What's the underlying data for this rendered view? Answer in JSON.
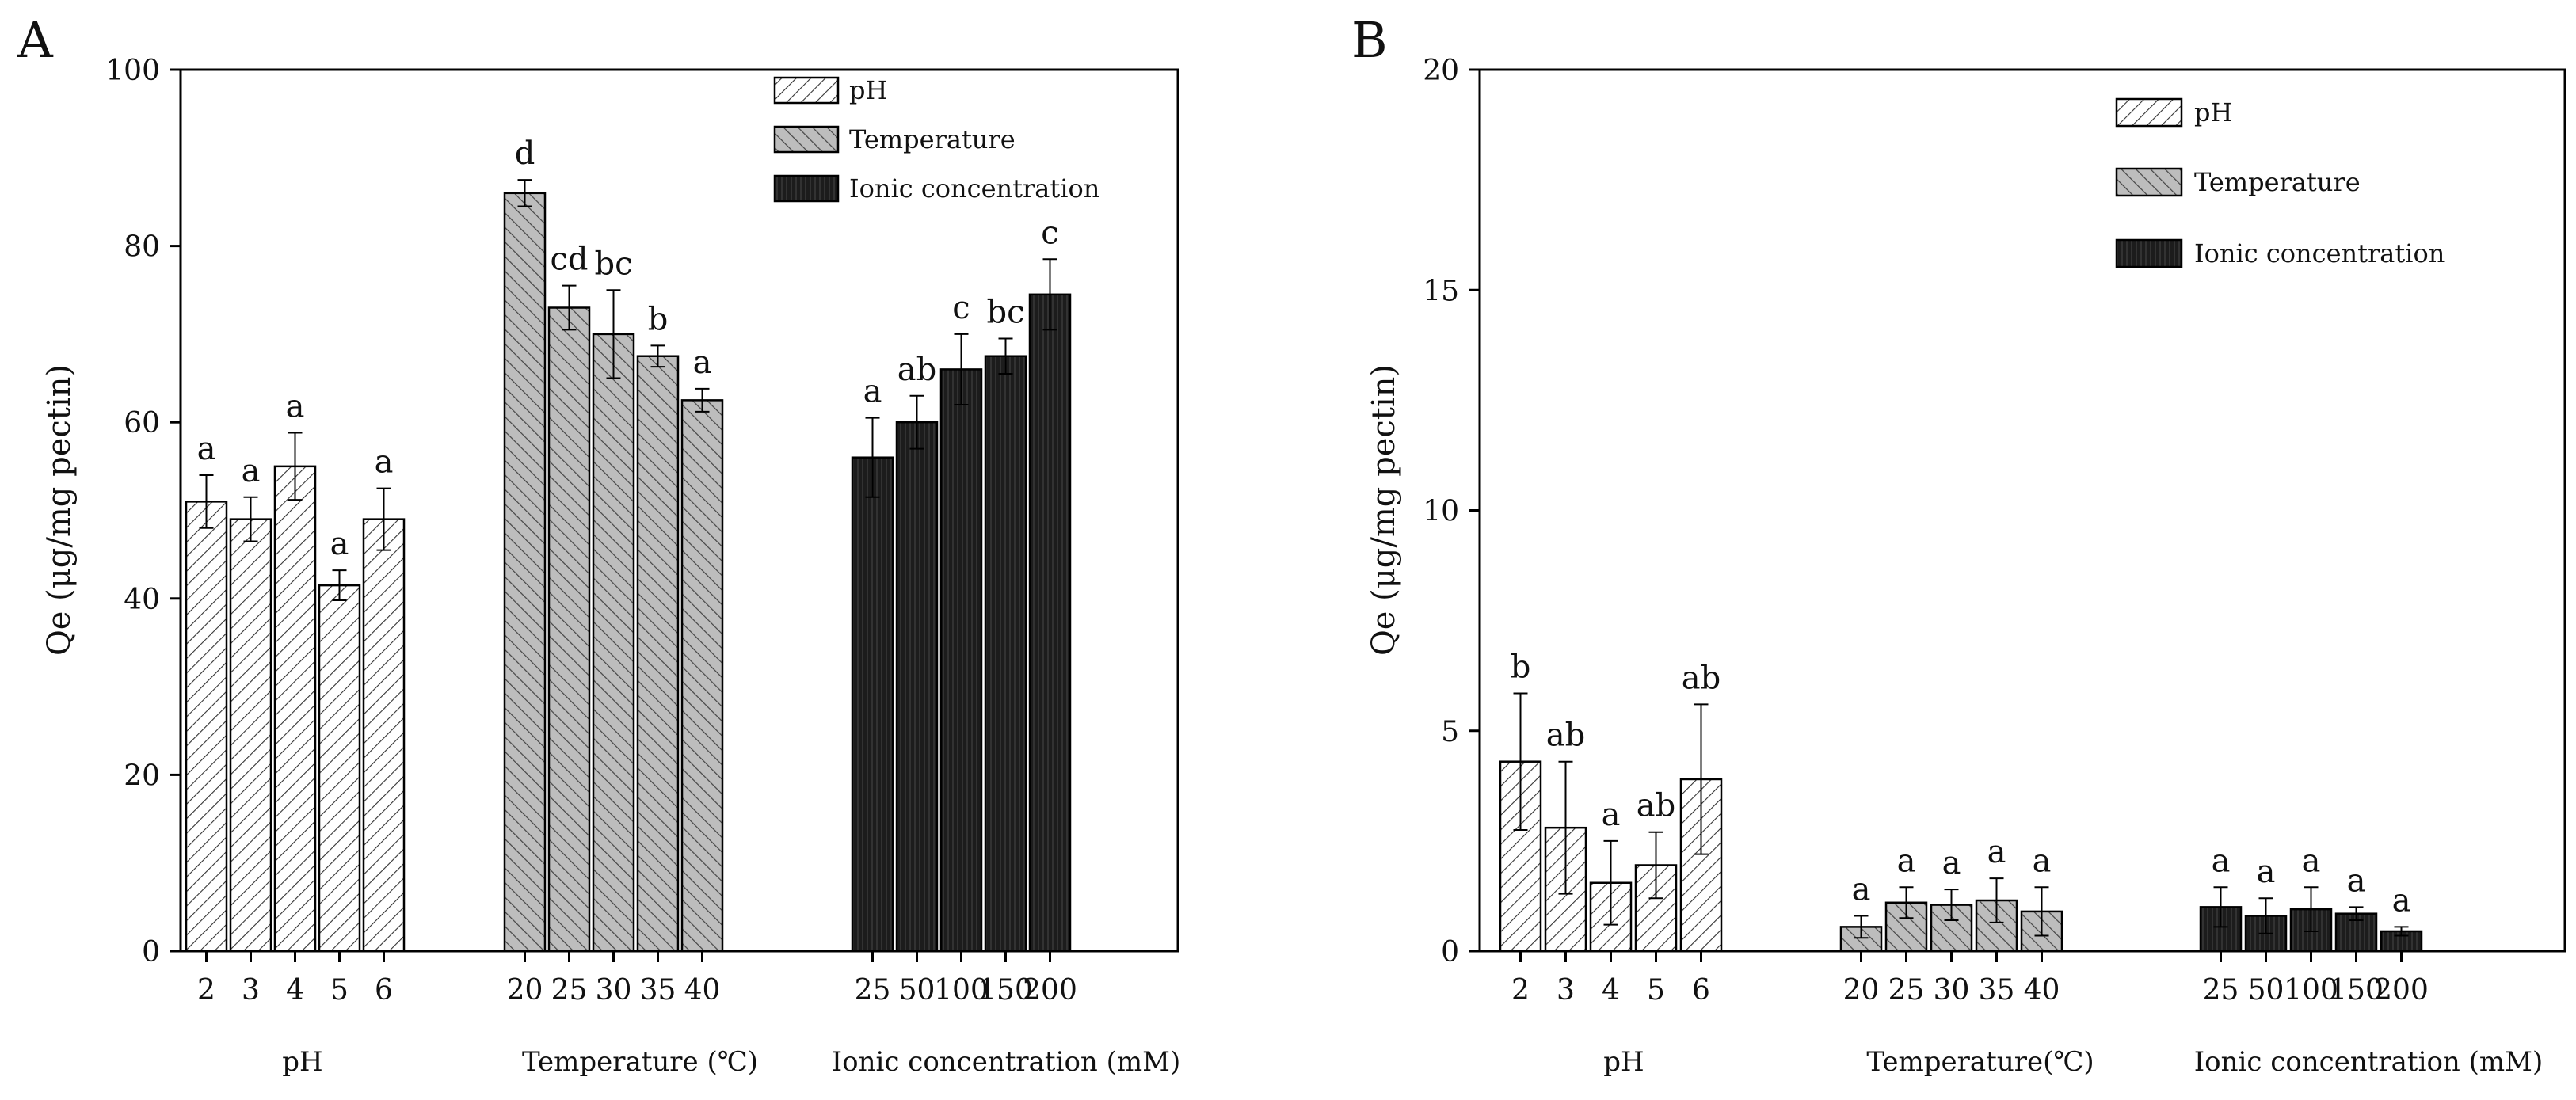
{
  "chart_data": [
    {
      "type": "bar",
      "panel": "A",
      "ylabel": "Qe (μg/mg pectin)",
      "ylim": [
        0,
        100
      ],
      "yticks": [
        0,
        20,
        40,
        60,
        80,
        100
      ],
      "legend": {
        "placement": "top-center",
        "entries": [
          "pH",
          "Temperature",
          "Ionic concentration"
        ]
      },
      "groups": [
        {
          "name": "pH",
          "label": "pH",
          "categories": [
            "2",
            "3",
            "4",
            "5",
            "6"
          ],
          "values": [
            51.0,
            49.0,
            55.0,
            41.5,
            49.0
          ],
          "errors": [
            3.0,
            2.5,
            3.8,
            1.7,
            3.5
          ],
          "letters": [
            "a",
            "a",
            "a",
            "a",
            "a"
          ]
        },
        {
          "name": "Temperature",
          "label": "Temperature (℃)",
          "categories": [
            "20",
            "25",
            "30",
            "35",
            "40"
          ],
          "values": [
            86.0,
            73.0,
            70.0,
            67.5,
            62.5
          ],
          "errors": [
            1.5,
            2.5,
            5.0,
            1.2,
            1.3
          ],
          "letters": [
            "d",
            "cd",
            "bc",
            "b",
            "a"
          ]
        },
        {
          "name": "Ionic concentration",
          "label": "Ionic concentration (mM)",
          "categories": [
            "25",
            "50",
            "100",
            "150",
            "200"
          ],
          "values": [
            56.0,
            60.0,
            66.0,
            67.5,
            74.5
          ],
          "errors": [
            4.5,
            3.0,
            4.0,
            2.0,
            4.0
          ],
          "letters": [
            "a",
            "ab",
            "c",
            "bc",
            "c"
          ]
        }
      ]
    },
    {
      "type": "bar",
      "panel": "B",
      "ylabel": "Qe (μg/mg pectin)",
      "ylim": [
        0,
        20
      ],
      "yticks": [
        0,
        5,
        10,
        15,
        20
      ],
      "legend": {
        "placement": "top-right",
        "entries": [
          "pH",
          "Temperature",
          "Ionic concentration"
        ]
      },
      "groups": [
        {
          "name": "pH",
          "label": "pH",
          "categories": [
            "2",
            "3",
            "4",
            "5",
            "6"
          ],
          "values": [
            4.3,
            2.8,
            1.55,
            1.95,
            3.9
          ],
          "errors": [
            1.55,
            1.5,
            0.95,
            0.75,
            1.7
          ],
          "letters": [
            "b",
            "ab",
            "a",
            "ab",
            "ab"
          ]
        },
        {
          "name": "Temperature",
          "label": "Temperature(℃)",
          "categories": [
            "20",
            "25",
            "30",
            "35",
            "40"
          ],
          "values": [
            0.55,
            1.1,
            1.05,
            1.15,
            0.9
          ],
          "errors": [
            0.25,
            0.35,
            0.35,
            0.5,
            0.55
          ],
          "letters": [
            "a",
            "a",
            "a",
            "a",
            "a"
          ]
        },
        {
          "name": "Ionic concentration",
          "label": "Ionic concentration (mM)",
          "categories": [
            "25",
            "50",
            "100",
            "150",
            "200"
          ],
          "values": [
            1.0,
            0.8,
            0.95,
            0.85,
            0.45
          ],
          "errors": [
            0.45,
            0.4,
            0.5,
            0.15,
            0.1
          ],
          "letters": [
            "a",
            "a",
            "a",
            "a",
            "a"
          ]
        }
      ]
    }
  ]
}
